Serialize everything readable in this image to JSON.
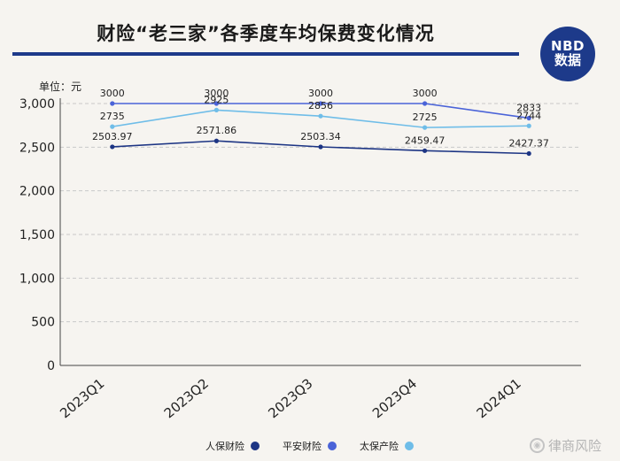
{
  "title": "财险“老三家”各季度车均保费变化情况",
  "logo": {
    "line1": "NBD",
    "line2": "数据",
    "color": "#1d3a8a"
  },
  "unit_label": "单位：元",
  "watermark": {
    "text": "律商风险",
    "icon": "weibo-icon"
  },
  "chart_data": {
    "type": "line",
    "categories": [
      "2023Q1",
      "2023Q2",
      "2023Q3",
      "2023Q4",
      "2024Q1"
    ],
    "ylim": [
      0,
      3000
    ],
    "yticks": [
      0,
      500,
      1000,
      1500,
      2000,
      2500,
      3000
    ],
    "ytick_labels": [
      "0",
      "500",
      "1,000",
      "1,500",
      "2,000",
      "2,500",
      "3,000"
    ],
    "grid": true,
    "legend_position": "bottom",
    "series": [
      {
        "name": "人保财险",
        "color": "#1d3584",
        "values": [
          2503.97,
          2571.86,
          2503.34,
          2459.47,
          2427.37
        ],
        "labels": [
          "2503.97",
          "2571.86",
          "2503.34",
          "2459.47",
          "2427.37"
        ]
      },
      {
        "name": "平安财险",
        "color": "#4a63d8",
        "values": [
          3000,
          3000,
          3000,
          3000,
          2833
        ],
        "labels": [
          "3000",
          "3000",
          "3000",
          "3000",
          "2833"
        ]
      },
      {
        "name": "太保产险",
        "color": "#6fbde8",
        "values": [
          2735,
          2925,
          2856,
          2725,
          2744
        ],
        "labels": [
          "2735",
          "2925",
          "2856",
          "2725",
          "2744"
        ]
      }
    ]
  }
}
